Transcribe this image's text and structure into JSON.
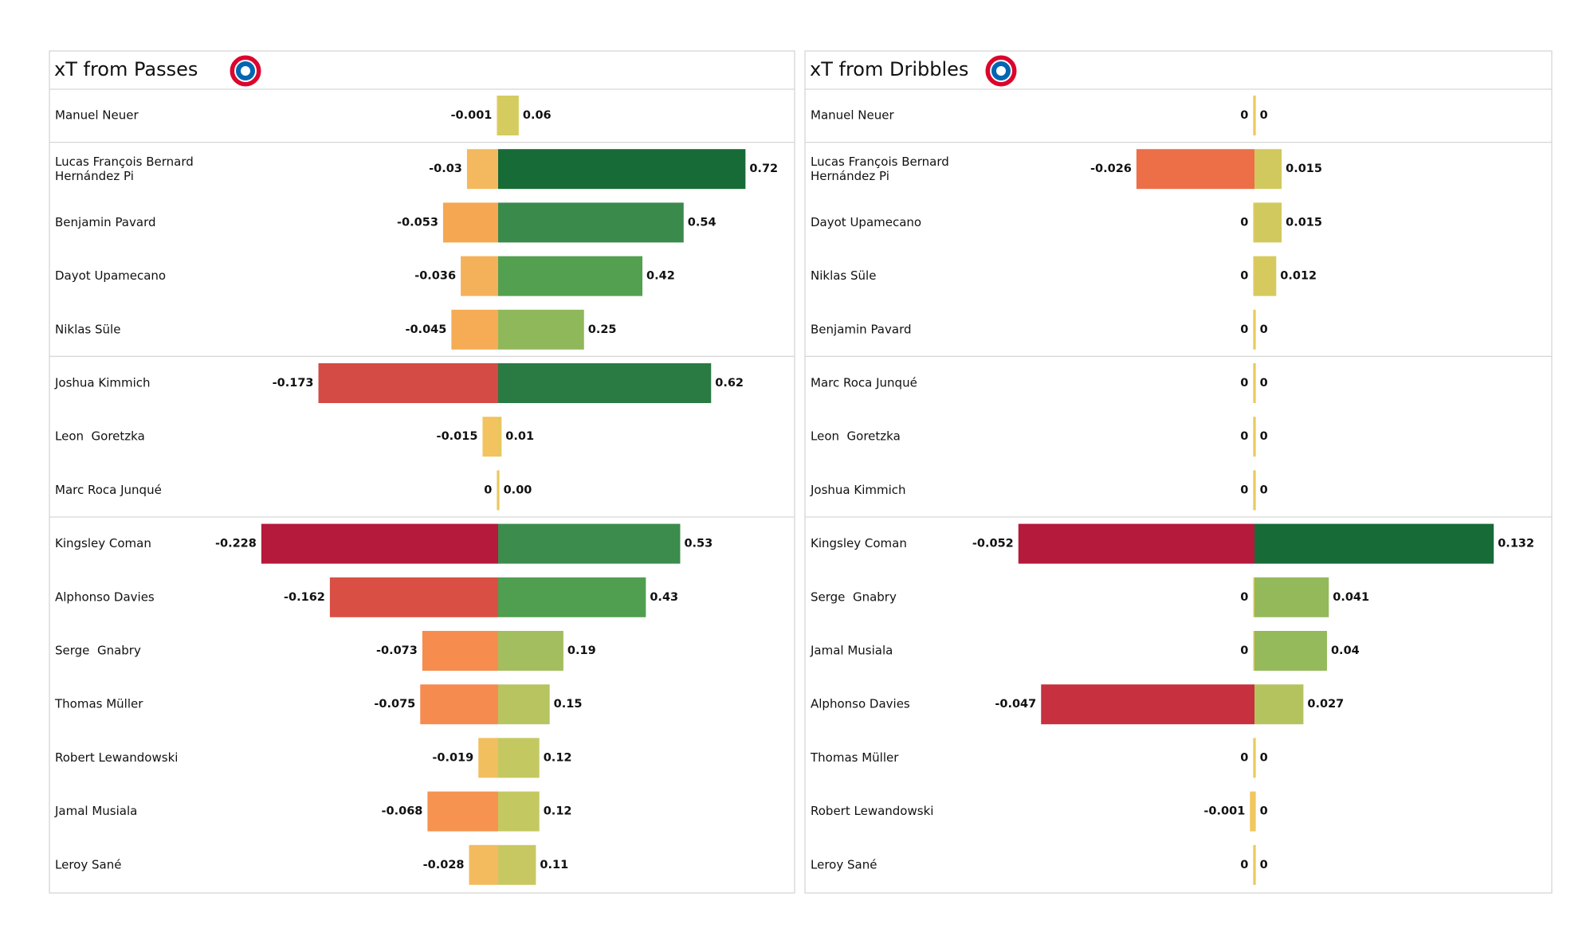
{
  "chart_data": [
    {
      "type": "bar",
      "title": "xT from Passes",
      "categories": [
        "Manuel Neuer",
        "Lucas François Bernard Hernández Pi",
        "Benjamin Pavard",
        "Dayot Upamecano",
        "Niklas Süle",
        "Joshua Kimmich",
        "Leon  Goretzka",
        "Marc Roca Junqué",
        "Kingsley Coman",
        "Alphonso Davies",
        "Serge  Gnabry",
        "Thomas Müller",
        "Robert Lewandowski",
        "Jamal Musiala",
        "Leroy Sané"
      ],
      "series": [
        {
          "values": [
            -0.001,
            -0.03,
            -0.053,
            -0.036,
            -0.045,
            -0.173,
            -0.015,
            0,
            -0.228,
            -0.162,
            -0.073,
            -0.075,
            -0.019,
            -0.068,
            -0.028
          ],
          "value_labels": [
            "-0.001",
            "-0.03",
            "-0.053",
            "-0.036",
            "-0.045",
            "-0.173",
            "-0.015",
            "0",
            "-0.228",
            "-0.162",
            "-0.073",
            "-0.075",
            "-0.019",
            "-0.068",
            "-0.028"
          ],
          "colors": [
            "#e9c95c",
            "#f4b95e",
            "#f6a751",
            "#f5b15a",
            "#f5ac55",
            "#d44a45",
            "#f2c35f",
            "#e9c95c",
            "#b5193b",
            "#d94f44",
            "#f68d4f",
            "#f68b4f",
            "#f2bf5e",
            "#f69350",
            "#f3ba5e"
          ],
          "xlim": [
            -0.432,
            0
          ]
        },
        {
          "values": [
            0.06,
            0.72,
            0.54,
            0.42,
            0.25,
            0.62,
            0.01,
            0,
            0.53,
            0.43,
            0.19,
            0.15,
            0.12,
            0.12,
            0.11
          ],
          "value_labels": [
            "0.06",
            "0.72",
            "0.54",
            "0.42",
            "0.25",
            "0.62",
            "0.01",
            "0.00",
            "0.53",
            "0.43",
            "0.19",
            "0.15",
            "0.12",
            "0.12",
            "0.11"
          ],
          "colors": [
            "#d4cc5e",
            "#166b36",
            "#3a8a4c",
            "#52a050",
            "#8fb85a",
            "#2a7a44",
            "#e6c85d",
            "#e9c95c",
            "#3c8c4d",
            "#509e50",
            "#a3be5e",
            "#b7c45f",
            "#c4c861",
            "#c4c861",
            "#c8c862"
          ],
          "xlim": [
            0,
            0.863
          ]
        }
      ]
    },
    {
      "type": "bar",
      "title": "xT from Dribbles",
      "categories": [
        "Manuel Neuer",
        "Lucas François Bernard Hernández Pi",
        "Dayot Upamecano",
        "Niklas Süle",
        "Benjamin Pavard",
        "Marc Roca Junqué",
        "Leon  Goretzka",
        "Joshua Kimmich",
        "Kingsley Coman",
        "Serge  Gnabry",
        "Jamal Musiala",
        "Alphonso Davies",
        "Thomas Müller",
        "Robert Lewandowski",
        "Leroy Sané"
      ],
      "series": [
        {
          "values": [
            0,
            -0.026,
            0,
            0,
            0,
            0,
            0,
            0,
            -0.052,
            0,
            0,
            -0.047,
            0,
            -0.001,
            0
          ],
          "value_labels": [
            "0",
            "-0.026",
            "0",
            "0",
            "0",
            "0",
            "0",
            "0",
            "-0.052",
            "0",
            "0",
            "-0.047",
            "0",
            "-0.001",
            "0"
          ],
          "colors": [
            "#e9c95c",
            "#ec6f48",
            "#e9c95c",
            "#e9c95c",
            "#e9c95c",
            "#e9c95c",
            "#e9c95c",
            "#e9c95c",
            "#b5193b",
            "#e9c95c",
            "#e9c95c",
            "#c6303f",
            "#e9c95c",
            "#f2c65f",
            "#e9c95c"
          ],
          "xlim": [
            -0.099,
            0
          ]
        },
        {
          "values": [
            0,
            0.015,
            0.015,
            0.012,
            0,
            0,
            0,
            0,
            0.132,
            0.041,
            0.04,
            0.027,
            0,
            0,
            0
          ],
          "value_labels": [
            "0",
            "0.015",
            "0.015",
            "0.012",
            "0",
            "0",
            "0",
            "0",
            "0.132",
            "0.041",
            "0.04",
            "0.027",
            "0",
            "0",
            "0"
          ],
          "colors": [
            "#e9c95c",
            "#d2c95e",
            "#d2c95e",
            "#d6ca5e",
            "#e9c95c",
            "#e9c95c",
            "#e9c95c",
            "#e9c95c",
            "#166b36",
            "#93b95a",
            "#95ba5b",
            "#b5c35f",
            "#e9c95c",
            "#e9c95c",
            "#e9c95c"
          ],
          "xlim": [
            0,
            0.164
          ]
        }
      ]
    }
  ]
}
